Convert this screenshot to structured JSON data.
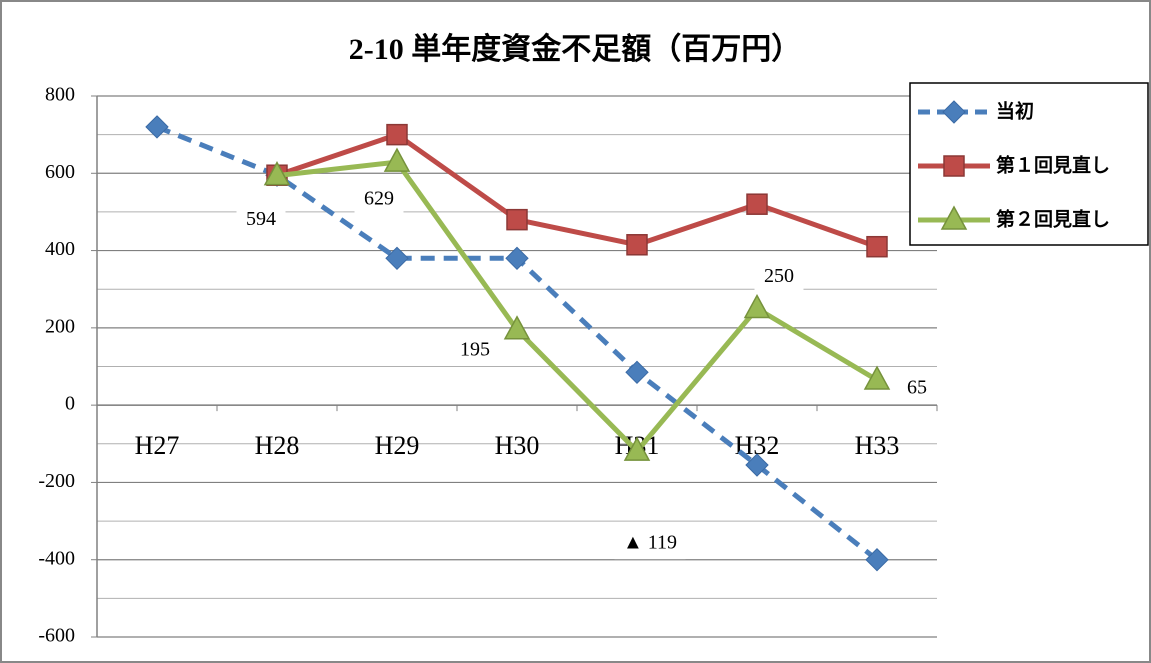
{
  "chart_data": {
    "type": "line",
    "title": "2-10 単年度資金不足額（百万円）",
    "categories": [
      "H27",
      "H28",
      "H29",
      "H30",
      "H31",
      "H32",
      "H33"
    ],
    "series": [
      {
        "name": "当初",
        "color": "#4a7ebb",
        "marker": "diamond",
        "dashed": true,
        "values": [
          720,
          595,
          380,
          380,
          85,
          -155,
          -400
        ]
      },
      {
        "name": "第１回見直し",
        "color": "#be4b48",
        "marker": "square",
        "dashed": false,
        "values": [
          null,
          595,
          700,
          480,
          415,
          520,
          410
        ]
      },
      {
        "name": "第２回見直し",
        "color": "#98b954",
        "marker": "triangle",
        "dashed": false,
        "values": [
          null,
          594,
          629,
          195,
          -119,
          250,
          65
        ],
        "value_labels": [
          null,
          "594",
          "629",
          "195",
          "▲ 119",
          "250",
          "65"
        ]
      }
    ],
    "ylim": [
      -600,
      800
    ],
    "yticks": [
      -600,
      -400,
      -200,
      0,
      200,
      400,
      600,
      800
    ],
    "y_minor_ticks": [
      -500,
      -300,
      -100,
      100,
      300,
      500,
      700
    ],
    "grid": true,
    "legend": "right"
  }
}
